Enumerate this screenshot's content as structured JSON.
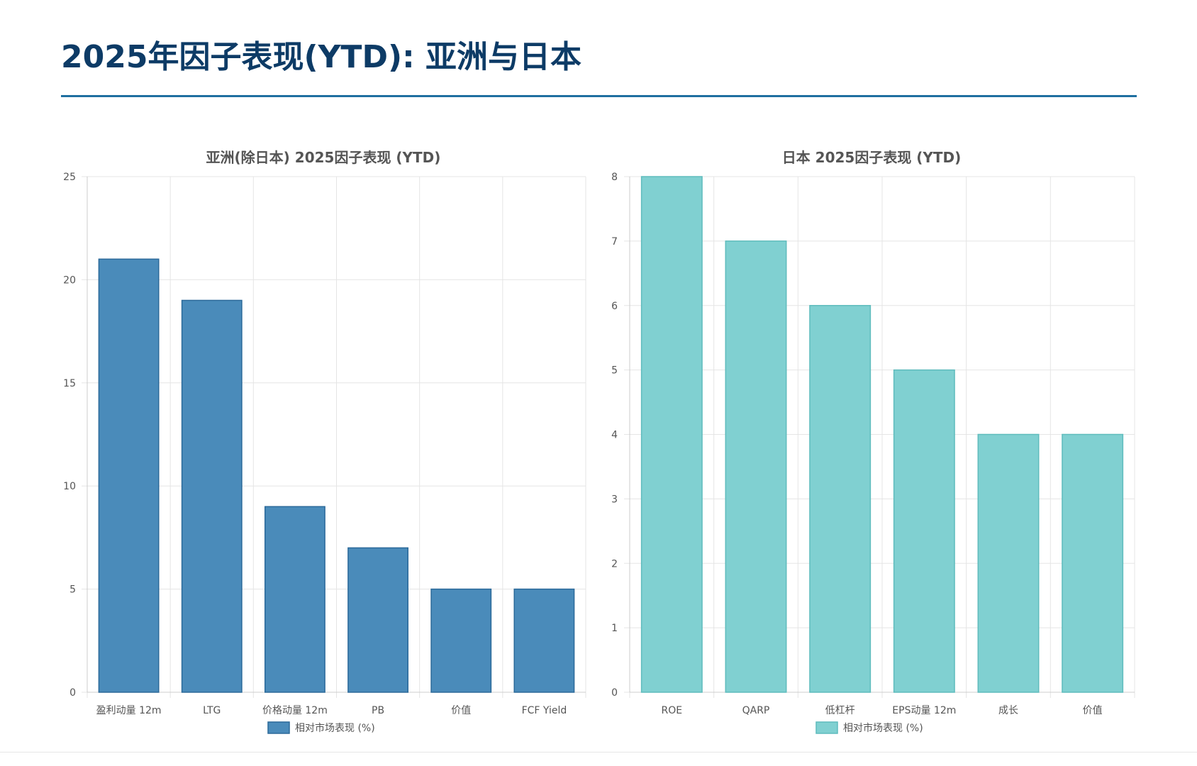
{
  "page": {
    "title": "2025年因子表现(YTD): 亚洲与日本"
  },
  "colors": {
    "title": "#0d3b66",
    "rule": "#1f6fa0",
    "asia_bar_fill": "#4a8bba",
    "asia_bar_border": "#2c6a9a",
    "japan_bar_fill": "#80d0d1",
    "japan_bar_border": "#5fbcbd",
    "grid": "#e5e5e5",
    "axis": "#cccccc"
  },
  "chart_data": [
    {
      "id": "asia",
      "type": "bar",
      "title": "亚洲(除日本) 2025因子表现 (YTD)",
      "categories": [
        "盈利动量 12m",
        "LTG",
        "价格动量 12m",
        "PB",
        "价值",
        "FCF Yield"
      ],
      "series": [
        {
          "name": "相对市场表现 (%)",
          "values": [
            21,
            19,
            9,
            7,
            5,
            5
          ]
        }
      ],
      "ylim": [
        0,
        25
      ],
      "yticks": [
        0,
        5,
        10,
        15,
        20,
        25
      ],
      "xlabel": "",
      "ylabel": "",
      "grid": true,
      "legend": "bottom-center"
    },
    {
      "id": "japan",
      "type": "bar",
      "title": "日本 2025因子表现 (YTD)",
      "categories": [
        "ROE",
        "QARP",
        "低杠杆",
        "EPS动量 12m",
        "成长",
        "价值"
      ],
      "series": [
        {
          "name": "相对市场表现 (%)",
          "values": [
            8,
            7,
            6,
            5,
            4,
            4
          ]
        }
      ],
      "ylim": [
        0,
        8
      ],
      "yticks": [
        0,
        1,
        2,
        3,
        4,
        5,
        6,
        7,
        8
      ],
      "xlabel": "",
      "ylabel": "",
      "grid": true,
      "legend": "bottom-center"
    }
  ]
}
